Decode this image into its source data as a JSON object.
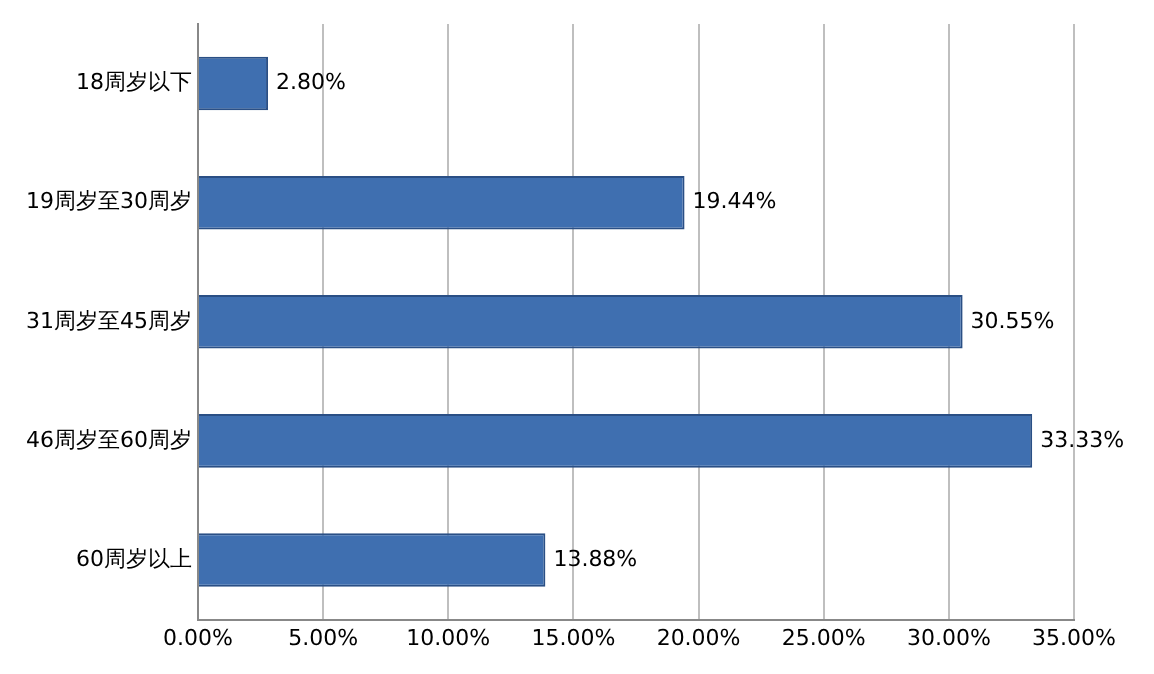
{
  "chart_data": {
    "type": "bar",
    "orientation": "horizontal",
    "categories": [
      "18周岁以下",
      "19周岁至30周岁",
      "31周岁至45周岁",
      "46周岁至60周岁",
      "60周岁以上"
    ],
    "values": [
      2.8,
      19.44,
      30.55,
      33.33,
      13.88
    ],
    "value_labels": [
      "2.80%",
      "19.44%",
      "30.55%",
      "33.33%",
      "13.88%"
    ],
    "color": "#3f6fb0",
    "xlim": [
      0,
      35
    ],
    "xticks": [
      {
        "value": 0,
        "label": "0.00%"
      },
      {
        "value": 5,
        "label": "5.00%"
      },
      {
        "value": 10,
        "label": "10.00%"
      },
      {
        "value": 15,
        "label": "15.00%"
      },
      {
        "value": 20,
        "label": "20.00%"
      },
      {
        "value": 25,
        "label": "25.00%"
      },
      {
        "value": 30,
        "label": "30.00%"
      },
      {
        "value": 35,
        "label": "35.00%"
      }
    ],
    "grid": "x"
  }
}
